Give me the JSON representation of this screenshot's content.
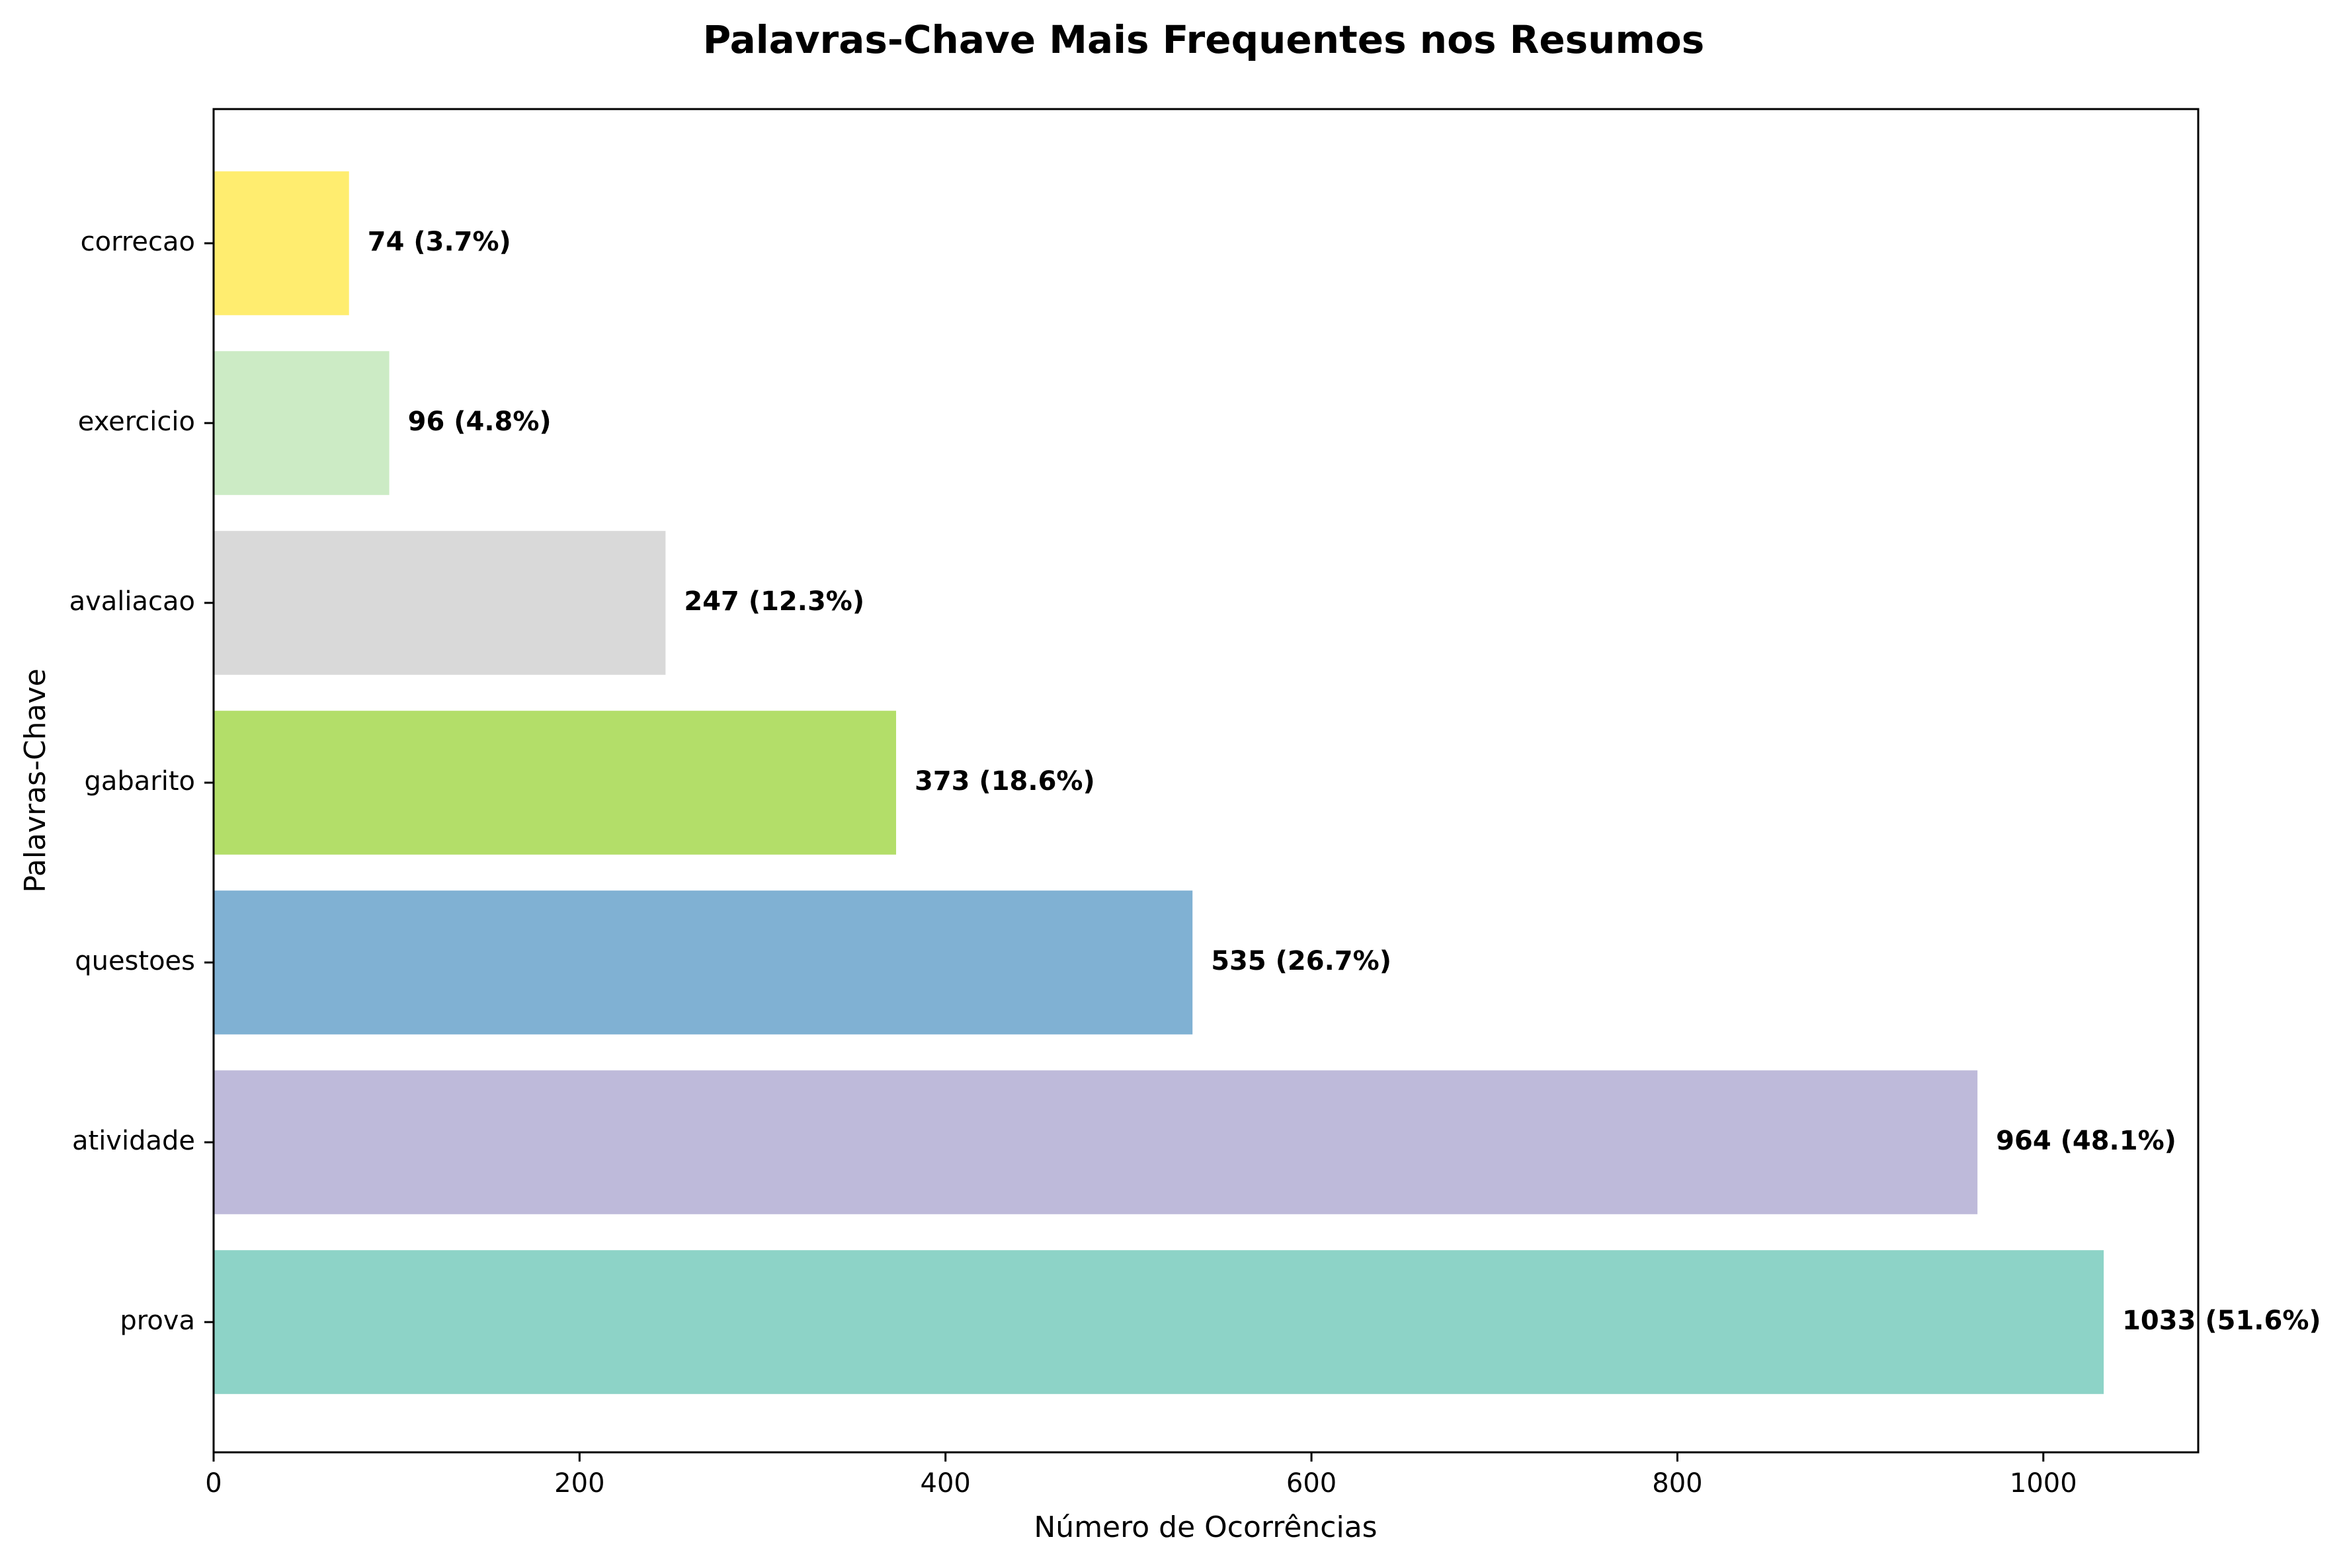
{
  "chart_data": {
    "type": "bar",
    "orientation": "horizontal",
    "title": "Palavras-Chave Mais Frequentes nos Resumos",
    "xlabel": "Número de Ocorrências",
    "ylabel": "Palavras-Chave",
    "categories": [
      "prova",
      "atividade",
      "questoes",
      "gabarito",
      "avaliacao",
      "exercicio",
      "correcao"
    ],
    "values": [
      1033,
      964,
      535,
      373,
      247,
      96,
      74
    ],
    "value_labels": [
      "1033 (51.6%)",
      "964 (48.1%)",
      "535 (26.7%)",
      "373 (18.6%)",
      "247 (12.3%)",
      "96 (4.8%)",
      "74 (3.7%)"
    ],
    "colors": [
      "#8dd3c7",
      "#bebada",
      "#80b1d3",
      "#b3de69",
      "#d9d9d9",
      "#ccebc5",
      "#ffed6f"
    ],
    "xlim": [
      0,
      1084.65
    ],
    "xticks": [
      0,
      200,
      400,
      600,
      800,
      1000
    ],
    "grid": false,
    "legend": false
  }
}
